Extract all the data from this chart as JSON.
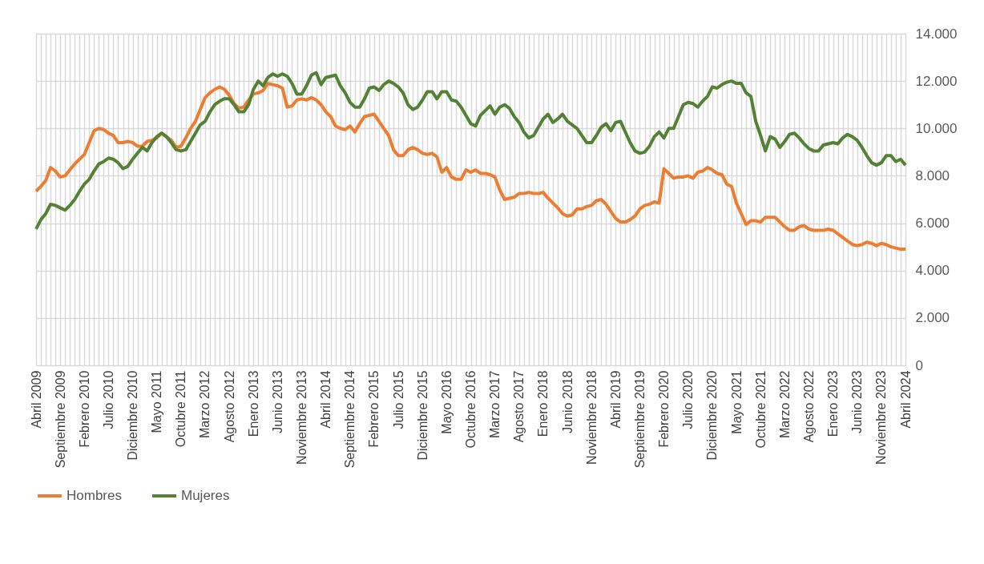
{
  "chart_data": {
    "type": "line",
    "legend": "bottom",
    "grid": true,
    "marker": "none",
    "line_style": "solid",
    "categories": [
      "Abril 2009",
      null,
      null,
      null,
      null,
      "Septiembre 2009",
      null,
      null,
      null,
      null,
      "Febrero 2010",
      null,
      null,
      null,
      null,
      "Julio 2010",
      null,
      null,
      null,
      null,
      "Diciembre 2010",
      null,
      null,
      null,
      null,
      "Mayo 2011",
      null,
      null,
      null,
      null,
      "Octubre 2011",
      null,
      null,
      null,
      null,
      "Marzo 2012",
      null,
      null,
      null,
      null,
      "Agosto 2012",
      null,
      null,
      null,
      null,
      "Enero 2013",
      null,
      null,
      null,
      null,
      "Junio 2013",
      null,
      null,
      null,
      null,
      "Noviembre 2013",
      null,
      null,
      null,
      null,
      "Abril 2014",
      null,
      null,
      null,
      null,
      "Septiembre 2014",
      null,
      null,
      null,
      null,
      "Febrero 2015",
      null,
      null,
      null,
      null,
      "Julio 2015",
      null,
      null,
      null,
      null,
      "Diciembre 2015",
      null,
      null,
      null,
      null,
      "Mayo 2016",
      null,
      null,
      null,
      null,
      "Octubre 2016",
      null,
      null,
      null,
      null,
      "Marzo 2017",
      null,
      null,
      null,
      null,
      "Agosto 2017",
      null,
      null,
      null,
      null,
      "Enero 2018",
      null,
      null,
      null,
      null,
      "Junio 2018",
      null,
      null,
      null,
      null,
      "Noviembre 2018",
      null,
      null,
      null,
      null,
      "Abril 2019",
      null,
      null,
      null,
      null,
      "Septiembre 2019",
      null,
      null,
      null,
      null,
      "Febrero 2020",
      null,
      null,
      null,
      null,
      "Julio 2020",
      null,
      null,
      null,
      null,
      "Diciembre 2020",
      null,
      null,
      null,
      null,
      "Mayo 2021",
      null,
      null,
      null,
      null,
      "Octubre 2021",
      null,
      null,
      null,
      null,
      "Marzo 2022",
      null,
      null,
      null,
      null,
      "Agosto 2022",
      null,
      null,
      null,
      null,
      "Enero 2023",
      null,
      null,
      null,
      null,
      "Junio 2023",
      null,
      null,
      null,
      null,
      "Noviembre 2023",
      null,
      null,
      null,
      null,
      "Abril 2024"
    ],
    "ylim": [
      0,
      14000
    ],
    "yticks": [
      {
        "value": 0,
        "label": "0"
      },
      {
        "value": 2000,
        "label": "2.000"
      },
      {
        "value": 4000,
        "label": "4.000"
      },
      {
        "value": 6000,
        "label": "6.000"
      },
      {
        "value": 8000,
        "label": "8.000"
      },
      {
        "value": 10000,
        "label": "10.000"
      },
      {
        "value": 12000,
        "label": "12.000"
      },
      {
        "value": 14000,
        "label": "14.000"
      }
    ],
    "series": [
      {
        "name": "Hombres",
        "color": "#ed7d31",
        "values": [
          7350,
          7550,
          7800,
          8350,
          8200,
          7950,
          8000,
          8250,
          8500,
          8700,
          8900,
          9400,
          9900,
          10000,
          9950,
          9800,
          9700,
          9400,
          9400,
          9450,
          9400,
          9250,
          9250,
          9450,
          9500,
          9600,
          9800,
          9650,
          9500,
          9200,
          9250,
          9600,
          10000,
          10300,
          10800,
          11300,
          11500,
          11650,
          11750,
          11650,
          11400,
          11050,
          10850,
          10900,
          11200,
          11450,
          11500,
          11600,
          11900,
          11850,
          11800,
          11700,
          10900,
          10950,
          11200,
          11250,
          11200,
          11300,
          11200,
          11000,
          10700,
          10500,
          10100,
          10000,
          9950,
          10100,
          9850,
          10200,
          10500,
          10550,
          10600,
          10300,
          10000,
          9700,
          9100,
          8850,
          8850,
          9100,
          9200,
          9100,
          8950,
          8900,
          8950,
          8800,
          8150,
          8350,
          7950,
          7850,
          7850,
          8250,
          8150,
          8250,
          8100,
          8100,
          8050,
          7950,
          7400,
          7000,
          7050,
          7100,
          7250,
          7250,
          7300,
          7250,
          7250,
          7300,
          7050,
          6850,
          6650,
          6400,
          6300,
          6350,
          6600,
          6600,
          6700,
          6750,
          6950,
          7000,
          6800,
          6500,
          6200,
          6050,
          6050,
          6150,
          6300,
          6600,
          6750,
          6800,
          6900,
          6850,
          8300,
          8100,
          7900,
          7950,
          7950,
          8000,
          7900,
          8150,
          8200,
          8350,
          8250,
          8100,
          8050,
          7650,
          7550,
          6850,
          6400,
          5950,
          6100,
          6100,
          6050,
          6250,
          6250,
          6250,
          6050,
          5850,
          5700,
          5700,
          5850,
          5900,
          5750,
          5700,
          5700,
          5700,
          5750,
          5700,
          5550,
          5400,
          5250,
          5100,
          5050,
          5100,
          5200,
          5150,
          5050,
          5150,
          5100,
          5000,
          4950,
          4900,
          4900
        ]
      },
      {
        "name": "Mujeres",
        "color": "#548235",
        "values": [
          5750,
          6150,
          6400,
          6800,
          6750,
          6650,
          6550,
          6750,
          7000,
          7350,
          7650,
          7850,
          8200,
          8500,
          8600,
          8750,
          8700,
          8550,
          8300,
          8400,
          8700,
          8950,
          9200,
          9050,
          9400,
          9650,
          9800,
          9650,
          9400,
          9100,
          9050,
          9100,
          9450,
          9800,
          10150,
          10300,
          10700,
          11000,
          11150,
          11250,
          11250,
          11000,
          10700,
          10700,
          11000,
          11650,
          12000,
          11800,
          12150,
          12300,
          12200,
          12300,
          12200,
          11900,
          11450,
          11450,
          11800,
          12250,
          12350,
          11850,
          12150,
          12200,
          12250,
          11800,
          11500,
          11100,
          10900,
          10900,
          11250,
          11700,
          11750,
          11600,
          11850,
          12000,
          11900,
          11750,
          11500,
          11000,
          10800,
          10900,
          11200,
          11550,
          11550,
          11250,
          11550,
          11550,
          11200,
          11150,
          10900,
          10550,
          10200,
          10100,
          10550,
          10750,
          10950,
          10600,
          10900,
          11000,
          10850,
          10500,
          10250,
          9850,
          9600,
          9700,
          10050,
          10400,
          10600,
          10250,
          10400,
          10600,
          10300,
          10150,
          10000,
          9700,
          9400,
          9400,
          9700,
          10050,
          10200,
          9900,
          10250,
          10300,
          9850,
          9400,
          9050,
          8950,
          9000,
          9250,
          9650,
          9850,
          9600,
          10000,
          10000,
          10500,
          11000,
          11100,
          11050,
          10900,
          11150,
          11350,
          11750,
          11700,
          11850,
          11950,
          12000,
          11900,
          11900,
          11500,
          11350,
          10300,
          9700,
          9050,
          9650,
          9550,
          9200,
          9450,
          9750,
          9800,
          9600,
          9350,
          9150,
          9050,
          9050,
          9300,
          9350,
          9400,
          9350,
          9600,
          9750,
          9650,
          9500,
          9200,
          8850,
          8550,
          8450,
          8550,
          8850,
          8850,
          8600,
          8700,
          8450
        ]
      }
    ]
  }
}
